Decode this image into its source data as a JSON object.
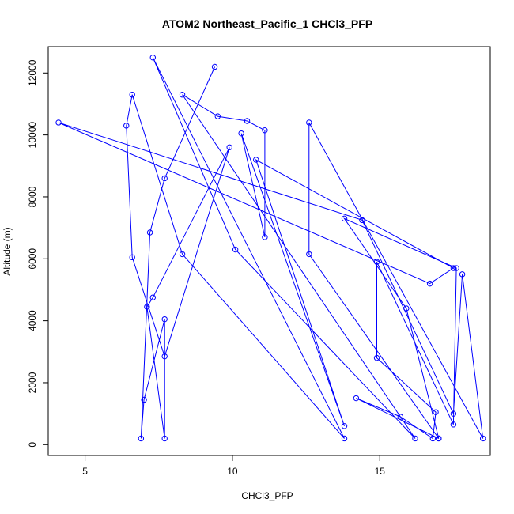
{
  "chart_data": {
    "type": "line",
    "title": "ATOM2 Northeast_Pacific_1 CHCl3_PFP",
    "xlabel": "CHCl3_PFP",
    "ylabel": "Altitude (m)",
    "xlim": [
      3.75,
      18.75
    ],
    "ylim": [
      -350,
      12850
    ],
    "xticks": [
      5,
      10,
      15
    ],
    "yticks": [
      0,
      2000,
      4000,
      6000,
      8000,
      10000,
      12000
    ],
    "grid": false,
    "color": "#0000FF",
    "series": [
      {
        "marker": "open-circle",
        "x": [
          9.4,
          7.7,
          7.2,
          6.9,
          7.0,
          7.7,
          7.7,
          7.1,
          7.3,
          9.9,
          7.7,
          6.6,
          6.4,
          6.6,
          8.3,
          13.8,
          7.3,
          10.1,
          16.2,
          8.3,
          9.5,
          10.5,
          11.1,
          11.1,
          10.3,
          13.8,
          10.8,
          17.5,
          16.7,
          4.1,
          14.4,
          17.5,
          17.8,
          18.5,
          12.6,
          12.6,
          17.0,
          15.9,
          13.8,
          17.6,
          17.5,
          14.9,
          14.9,
          16.9,
          16.8,
          15.7,
          14.2,
          17.0
        ],
        "y": [
          12200,
          8600,
          6850,
          200,
          1450,
          4050,
          200,
          4450,
          4750,
          9600,
          2850,
          6050,
          10300,
          11300,
          6150,
          200,
          12500,
          6300,
          200,
          11300,
          10600,
          10450,
          10150,
          6700,
          10050,
          600,
          9200,
          5700,
          5200,
          10400,
          7250,
          1000,
          5500,
          200,
          10400,
          6150,
          200,
          4400,
          7300,
          5700,
          650,
          5900,
          2800,
          1050,
          200,
          900,
          1500,
          200
        ]
      }
    ]
  }
}
